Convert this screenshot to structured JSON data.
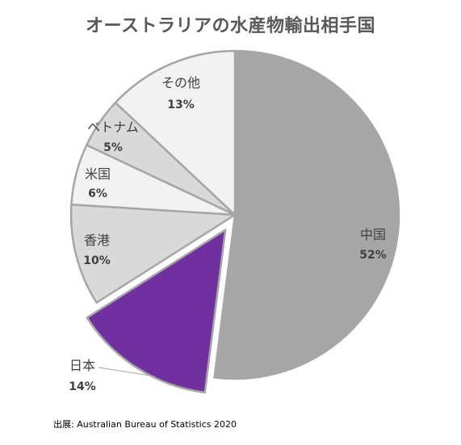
{
  "chart_data": {
    "type": "pie",
    "title": "オーストラリアの水産物輸出相手国",
    "start_angle_deg": 0,
    "direction": "clockwise",
    "slices": [
      {
        "label": "中国",
        "value": 52,
        "value_label": "52%",
        "color": "#a6a6a6",
        "exploded": false
      },
      {
        "label": "日本",
        "value": 14,
        "value_label": "14%",
        "color": "#7030a0",
        "exploded": true
      },
      {
        "label": "香港",
        "value": 10,
        "value_label": "10%",
        "color": "#d9d9d9",
        "exploded": false
      },
      {
        "label": "米国",
        "value": 6,
        "value_label": "6%",
        "color": "#f2f2f2",
        "exploded": false
      },
      {
        "label": "ベトナム",
        "value": 5,
        "value_label": "5%",
        "color": "#d9d9d9",
        "exploded": false
      },
      {
        "label": "その他",
        "value": 13,
        "value_label": "13%",
        "color": "#f2f2f2",
        "exploded": false
      }
    ]
  },
  "source": "出展: Australian Bureau of Statistics 2020"
}
